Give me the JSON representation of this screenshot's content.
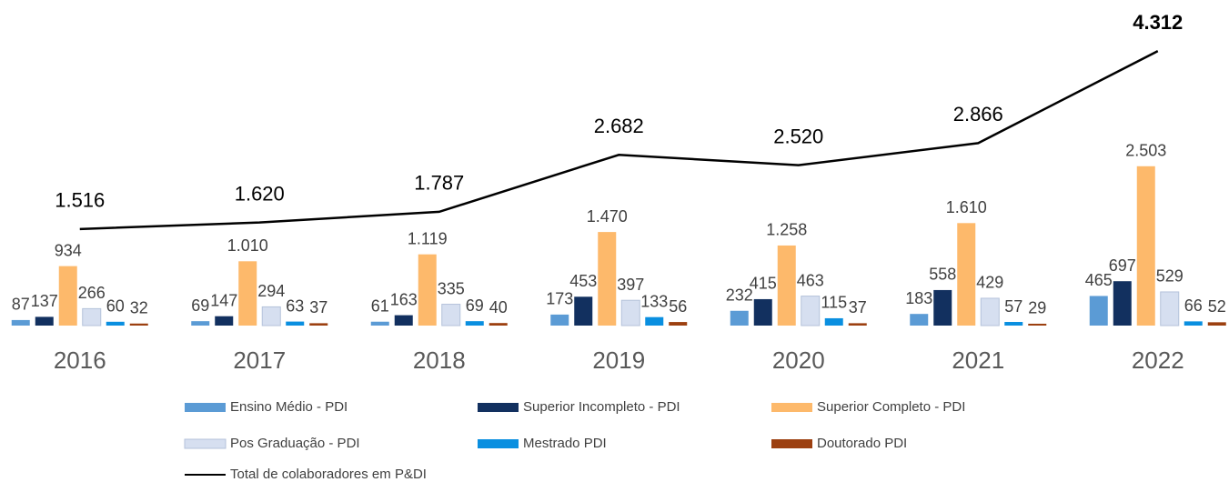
{
  "chart_data": {
    "type": "bar",
    "categories": [
      "2016",
      "2017",
      "2018",
      "2019",
      "2020",
      "2021",
      "2022"
    ],
    "ylim": [
      0,
      5000
    ],
    "series": [
      {
        "name": "Ensino Médio - PDI",
        "color": "#5b9bd5",
        "values": [
          87,
          69,
          61,
          173,
          232,
          183,
          465
        ]
      },
      {
        "name": "Superior Incompleto - PDI",
        "color": "#12305f",
        "values": [
          137,
          147,
          163,
          453,
          415,
          558,
          697
        ]
      },
      {
        "name": "Superior Completo - PDI",
        "color": "#fdb96b",
        "values": [
          934,
          1010,
          1119,
          1470,
          1258,
          1610,
          2503
        ],
        "value_labels": [
          "934",
          "1.010",
          "1.119",
          "1.470",
          "1.258",
          "1.610",
          "2.503"
        ]
      },
      {
        "name": "Pos Graduação - PDI",
        "color": "#d6dff0",
        "values": [
          266,
          294,
          335,
          397,
          463,
          429,
          529
        ]
      },
      {
        "name": "Mestrado PDI",
        "color": "#0a8fe0",
        "values": [
          60,
          63,
          69,
          133,
          115,
          57,
          66
        ]
      },
      {
        "name": "Doutorado PDI",
        "color": "#9c4010",
        "values": [
          32,
          37,
          40,
          56,
          37,
          29,
          52
        ]
      },
      {
        "name": "Total de colaboradores em P&DI",
        "type": "line",
        "color": "#000000",
        "values": [
          1516,
          1620,
          1787,
          2682,
          2520,
          2866,
          4312
        ],
        "value_labels": [
          "1.516",
          "1.620",
          "1.787",
          "2.682",
          "2.520",
          "2.866",
          "4.312"
        ]
      }
    ]
  }
}
